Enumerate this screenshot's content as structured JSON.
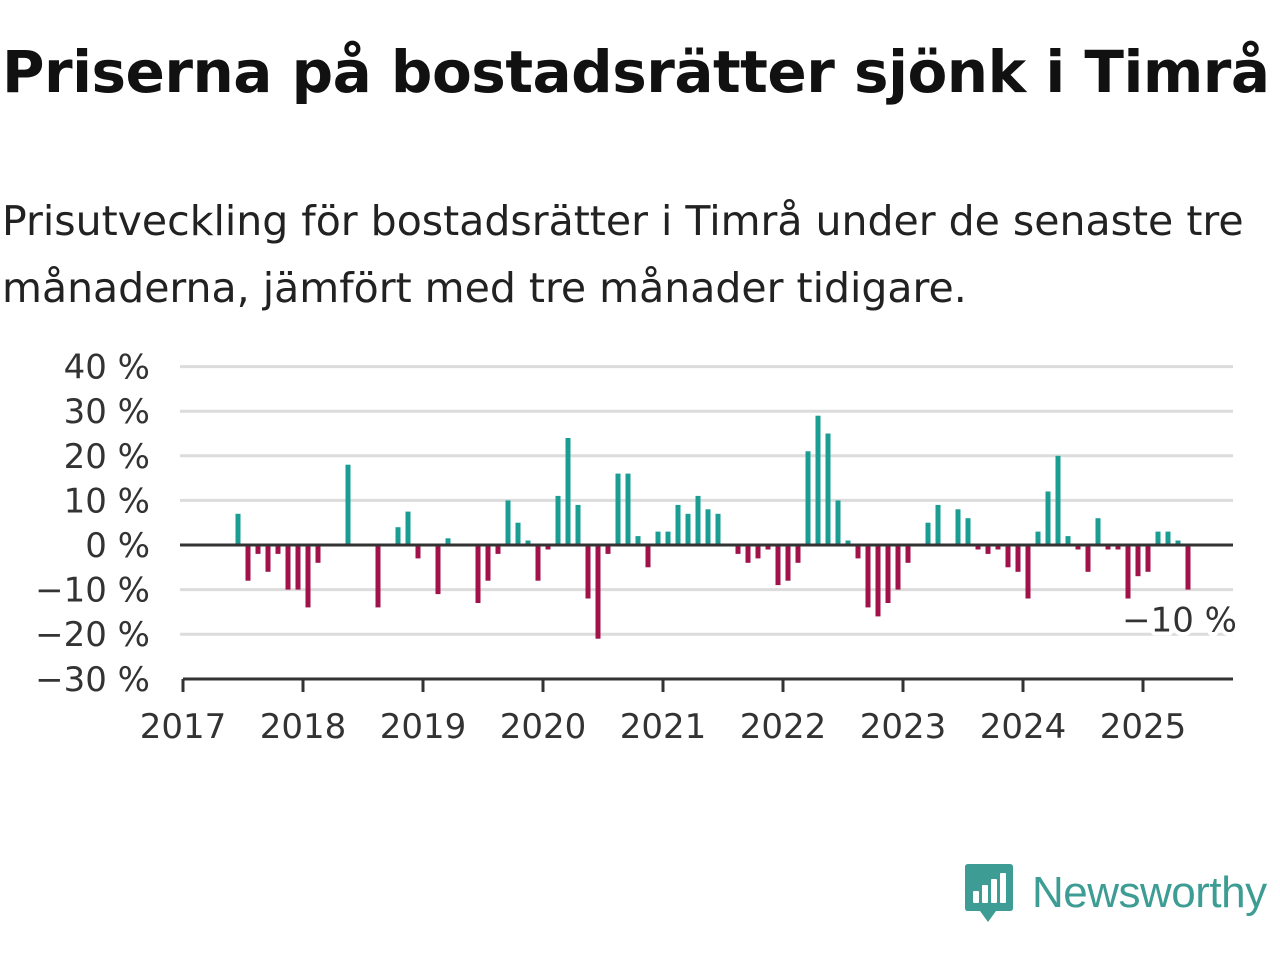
{
  "title": "Priserna på bostadsrätter sjönk i Timrå",
  "subtitle": "Prisutveckling för bostadsrätter i Timrå under de senaste tre månaderna, jämfört med tre månader tidigare.",
  "brand": {
    "name": "Newsworthy",
    "icon": "newsworthy-logo-icon",
    "color": "#3d9d94"
  },
  "chart_data": {
    "type": "bar",
    "x_start": "2017-01",
    "x_labels": [
      "2017",
      "2018",
      "2019",
      "2020",
      "2021",
      "2022",
      "2023",
      "2024",
      "2025"
    ],
    "y_ticks": [
      "40 %",
      "30 %",
      "20 %",
      "10 %",
      "0 %",
      "−10 %",
      "−20 %",
      "−30 %"
    ],
    "ylim": [
      -30,
      40
    ],
    "unit": "%",
    "grid": true,
    "positive_color": "#1a9e94",
    "negative_color": "#a3114a",
    "last_value_label": "−10 %",
    "series": [
      {
        "x": [
          "2017-06",
          "2017-07",
          "2017-08",
          "2017-09",
          "2017-10",
          "2017-11",
          "2017-12",
          "2018-01",
          "2018-02",
          "2018-05",
          "2018-08",
          "2018-10",
          "2018-11",
          "2018-12",
          "2019-02",
          "2019-03",
          "2019-06",
          "2019-07",
          "2019-08",
          "2019-09",
          "2019-10",
          "2019-11",
          "2019-12",
          "2020-01",
          "2020-02",
          "2020-03",
          "2020-04",
          "2020-05",
          "2020-06",
          "2020-07",
          "2020-08",
          "2020-09",
          "2020-10",
          "2020-11",
          "2020-12",
          "2021-01",
          "2021-02",
          "2021-03",
          "2021-04",
          "2021-05",
          "2021-06",
          "2021-08",
          "2021-09",
          "2021-10",
          "2021-11",
          "2021-12",
          "2022-01",
          "2022-02",
          "2022-03",
          "2022-04",
          "2022-05",
          "2022-06",
          "2022-07",
          "2022-08",
          "2022-09",
          "2022-10",
          "2022-11",
          "2022-12",
          "2023-01",
          "2023-03",
          "2023-04",
          "2023-06",
          "2023-07",
          "2023-08",
          "2023-09",
          "2023-10",
          "2023-11",
          "2023-12",
          "2024-01",
          "2024-02",
          "2024-03",
          "2024-04",
          "2024-05",
          "2024-06",
          "2024-07",
          "2024-08",
          "2024-09",
          "2024-10",
          "2024-11",
          "2024-12",
          "2025-01",
          "2025-02",
          "2025-03",
          "2025-04",
          "2025-05"
        ],
        "values": [
          7,
          -8,
          -2,
          -6,
          -2,
          -10,
          -10,
          -14,
          -4,
          18,
          -14,
          4,
          7.5,
          -3,
          -11,
          1.5,
          -13,
          -8,
          -2,
          10,
          5,
          1,
          -8,
          -1,
          11,
          24,
          9,
          -12,
          -21,
          -2,
          16,
          16,
          2,
          -5,
          3,
          3,
          9,
          7,
          11,
          8,
          7,
          -2,
          -4,
          -3,
          -1,
          -9,
          -8,
          -4,
          21,
          29,
          25,
          10,
          1,
          -3,
          -14,
          -16,
          -13,
          -10,
          -4,
          5,
          9,
          8,
          6,
          -1,
          -2,
          -1,
          -5,
          -6,
          -12,
          3,
          12,
          20,
          2,
          -1,
          -6,
          6,
          -1,
          -1,
          -12,
          -7,
          -6,
          3,
          3,
          1,
          -10
        ]
      }
    ]
  }
}
